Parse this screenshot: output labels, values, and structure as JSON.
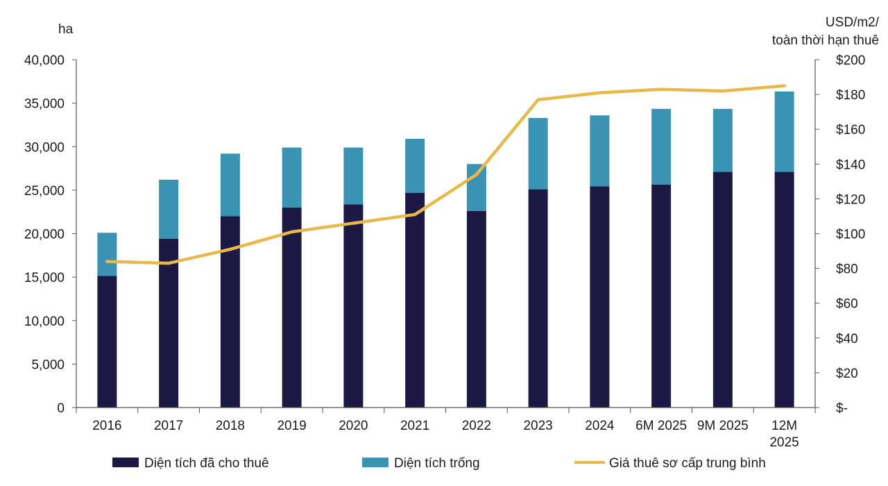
{
  "chart_data": {
    "type": "bar",
    "stacked": true,
    "categories": [
      "2016",
      "2017",
      "2018",
      "2019",
      "2020",
      "2021",
      "2022",
      "2023",
      "2024",
      "6M 2025",
      "9M 2025",
      "12M 2025"
    ],
    "category_lines": [
      [
        "2016"
      ],
      [
        "2017"
      ],
      [
        "2018"
      ],
      [
        "2019"
      ],
      [
        "2020"
      ],
      [
        "2021"
      ],
      [
        "2022"
      ],
      [
        "2023"
      ],
      [
        "2024"
      ],
      [
        "6M 2025"
      ],
      [
        "9M 2025"
      ],
      [
        "12M",
        "2025"
      ]
    ],
    "series": [
      {
        "name": "Diện tích đã cho thuê",
        "kind": "bar",
        "axis": "left",
        "color": "#1c1a44",
        "values": [
          15150,
          19400,
          22000,
          23000,
          23350,
          24700,
          22600,
          25100,
          25450,
          25650,
          27100,
          27100
        ]
      },
      {
        "name": "Diện tích trống",
        "kind": "bar",
        "axis": "left",
        "color": "#3b93b3",
        "values": [
          4950,
          6800,
          7200,
          6900,
          6550,
          6200,
          5400,
          8200,
          8150,
          8700,
          7250,
          9250
        ]
      },
      {
        "name": "Giá thuê sơ cấp trung bình",
        "kind": "line",
        "axis": "right",
        "color": "#e8b94a",
        "values": [
          84,
          83,
          91,
          101,
          106,
          111,
          134,
          177,
          181,
          183,
          182,
          185
        ]
      }
    ],
    "left_axis": {
      "label": "ha",
      "ylim": [
        0,
        40000
      ],
      "ticks": [
        0,
        5000,
        10000,
        15000,
        20000,
        25000,
        30000,
        35000,
        40000
      ],
      "tick_labels": [
        "0",
        "5,000",
        "10,000",
        "15,000",
        "20,000",
        "25,000",
        "30,000",
        "35,000",
        "40,000"
      ]
    },
    "right_axis": {
      "label_lines": [
        "USD/m2/",
        "toàn thời hạn thuê"
      ],
      "ylim": [
        0,
        200
      ],
      "ticks": [
        0,
        20,
        40,
        60,
        80,
        100,
        120,
        140,
        160,
        180,
        200
      ],
      "tick_labels": [
        "$-",
        "$20",
        "$40",
        "$60",
        "$80",
        "$100",
        "$120",
        "$140",
        "$160",
        "$180",
        "$200"
      ]
    },
    "grid": false,
    "legend_position": "bottom"
  }
}
